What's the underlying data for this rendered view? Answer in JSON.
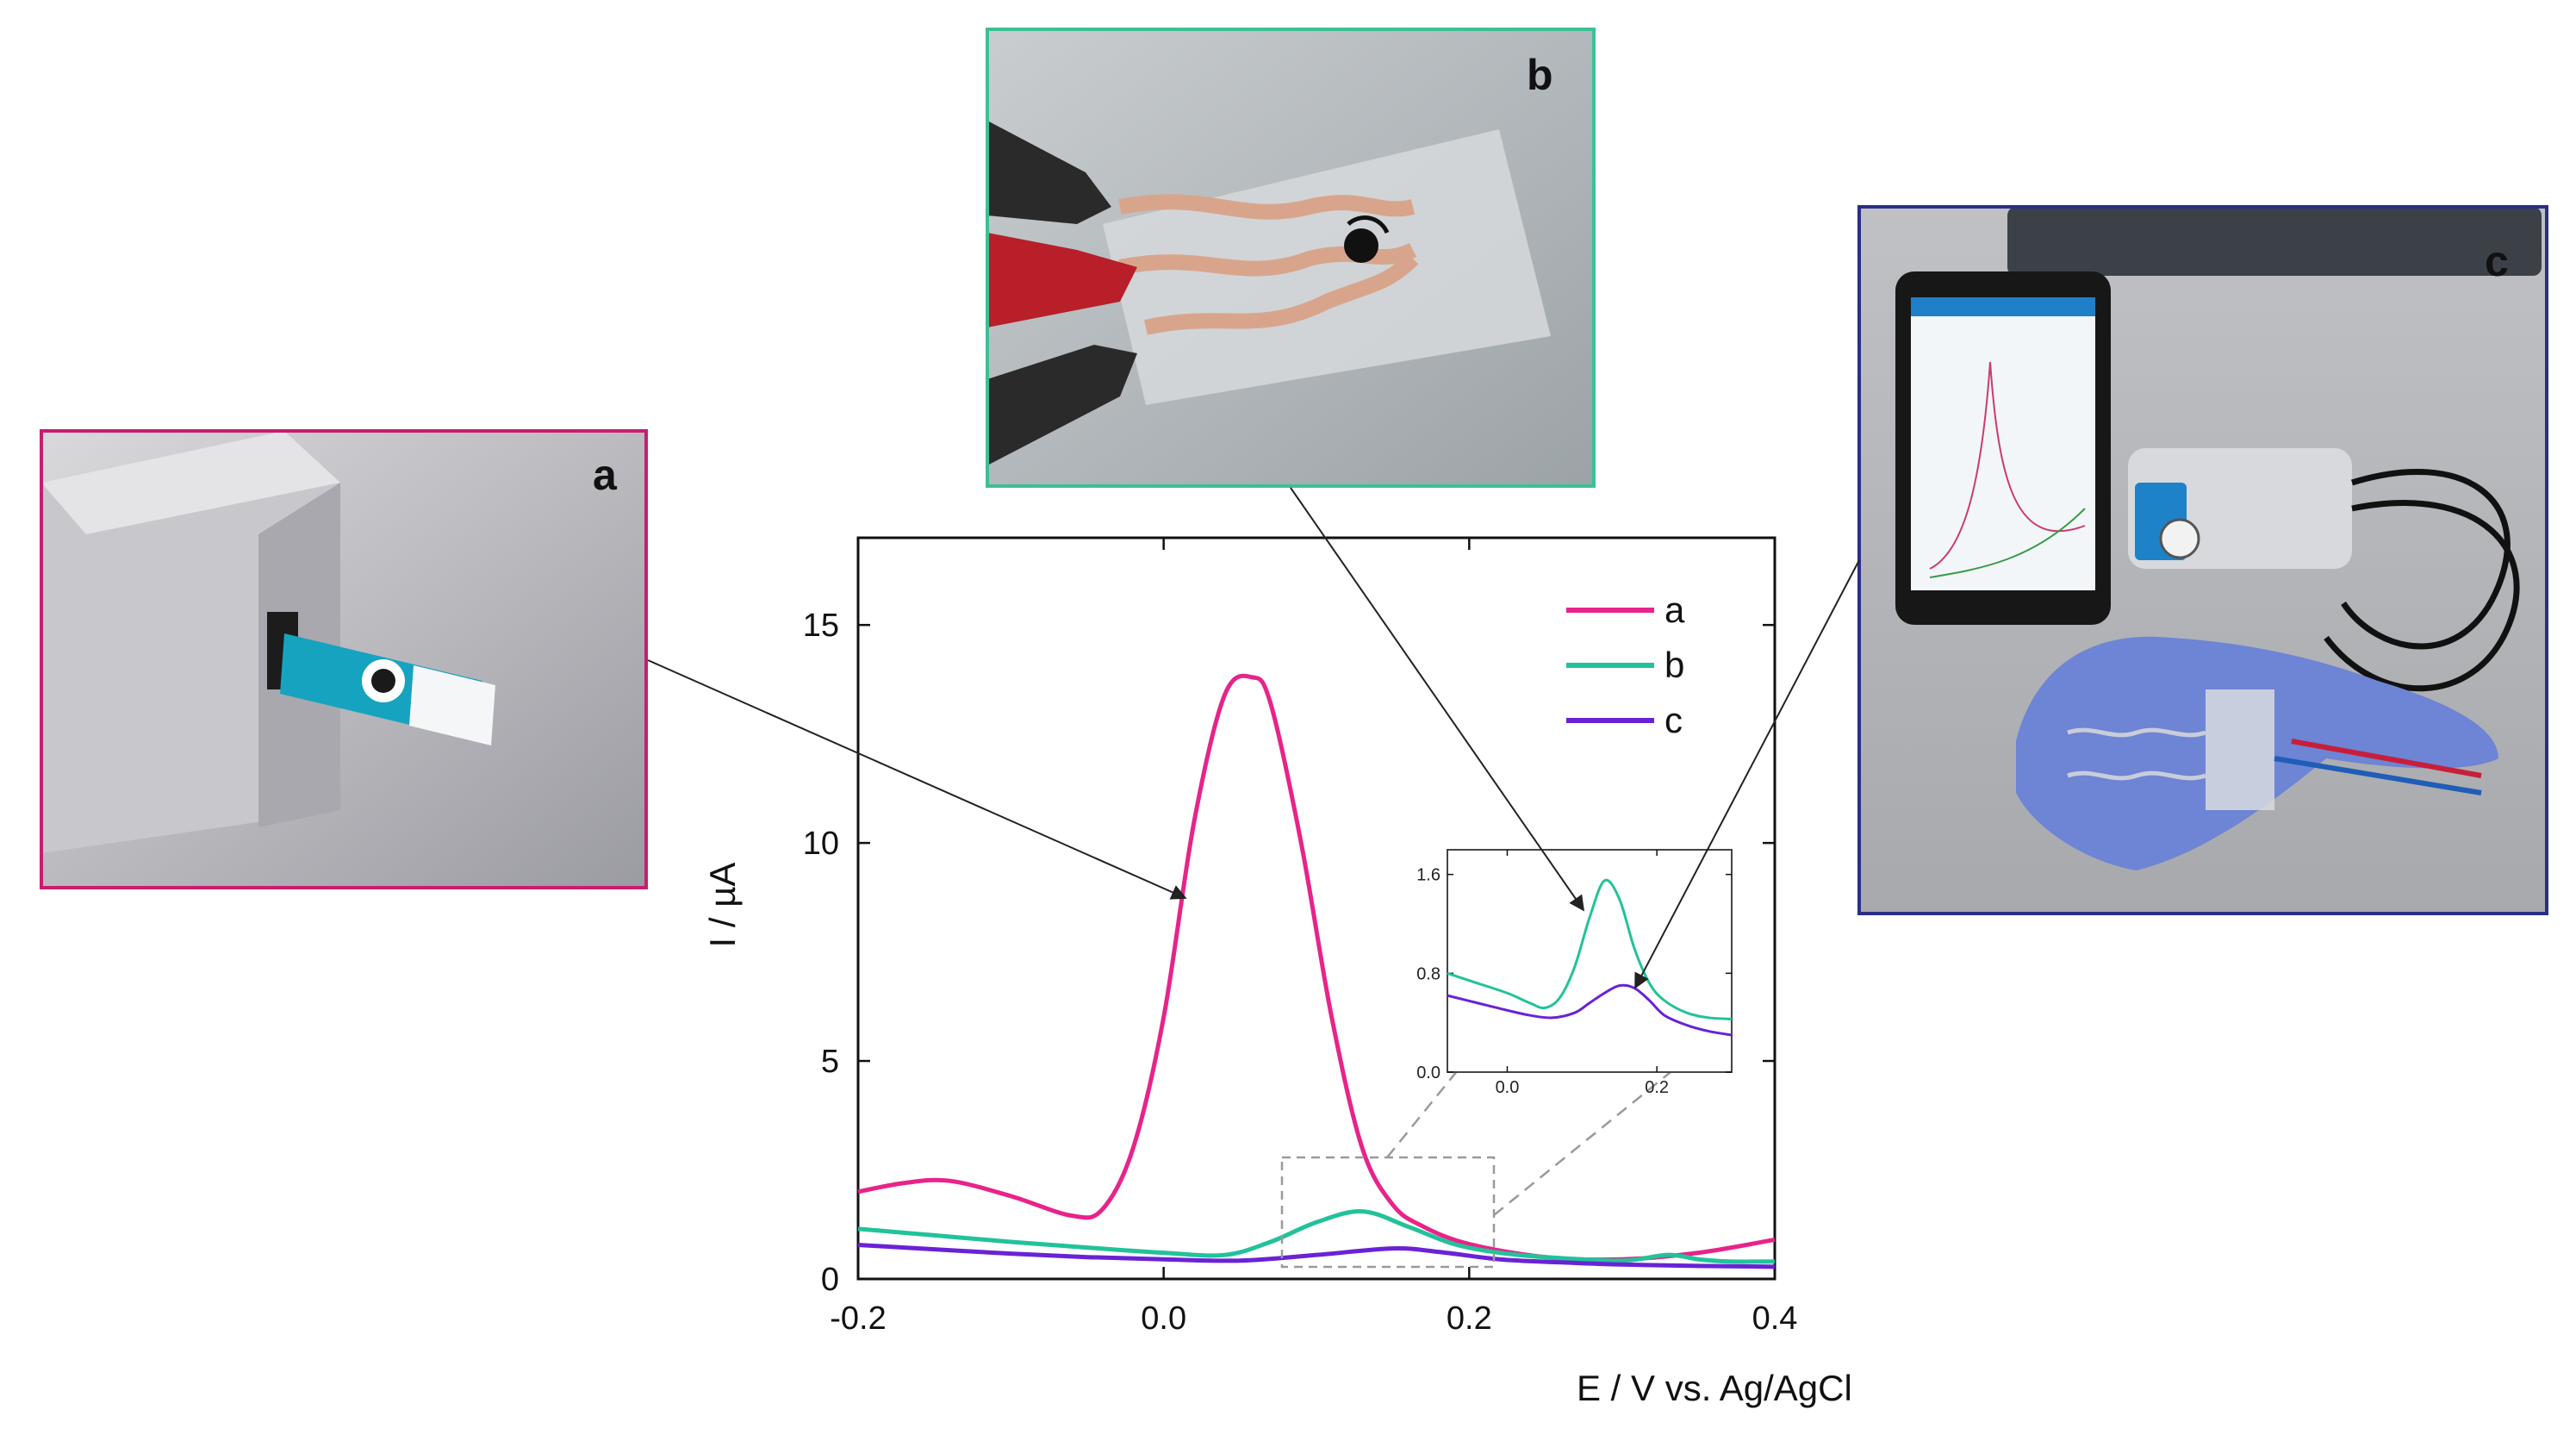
{
  "photos": {
    "a": {
      "letter": "a",
      "border_color": "#c81e6e",
      "description_icon": "potentiostat-photo"
    },
    "b": {
      "letter": "b",
      "border_color": "#3dbf95",
      "description_icon": "electrode-photo"
    },
    "c": {
      "letter": "c",
      "border_color": "#2a2f86",
      "description_icon": "glove-sensor-photo"
    }
  },
  "chart_data": [
    {
      "type": "line",
      "xlabel": "E / V vs. Ag/AgCl",
      "ylabel": "I / µA",
      "xlim": [
        -0.2,
        0.4
      ],
      "ylim": [
        0,
        17
      ],
      "xticks": [
        -0.2,
        0.0,
        0.2,
        0.4
      ],
      "xtick_labels": [
        "-0.2",
        "0.0",
        "0.2",
        "0.4"
      ],
      "yticks": [
        0,
        5,
        10,
        15
      ],
      "ytick_labels": [
        "0",
        "5",
        "10",
        "15"
      ],
      "legend_position": "top-right",
      "series": [
        {
          "name": "a",
          "color": "#e8238a",
          "x": [
            -0.2,
            -0.17,
            -0.14,
            -0.1,
            -0.06,
            -0.04,
            -0.02,
            0.0,
            0.02,
            0.04,
            0.058,
            0.07,
            0.09,
            0.11,
            0.13,
            0.15,
            0.17,
            0.2,
            0.25,
            0.3,
            0.35,
            0.4
          ],
          "y": [
            2.0,
            2.2,
            2.25,
            1.9,
            1.45,
            1.6,
            3.0,
            6.0,
            10.5,
            13.4,
            13.8,
            13.2,
            10.0,
            6.0,
            3.0,
            1.7,
            1.2,
            0.8,
            0.5,
            0.45,
            0.6,
            0.9
          ]
        },
        {
          "name": "b",
          "color": "#22c29a",
          "x": [
            -0.2,
            -0.15,
            -0.1,
            -0.05,
            0.0,
            0.04,
            0.07,
            0.1,
            0.13,
            0.16,
            0.19,
            0.22,
            0.25,
            0.3,
            0.33,
            0.35,
            0.37,
            0.4
          ],
          "y": [
            1.15,
            1.0,
            0.85,
            0.72,
            0.6,
            0.55,
            0.85,
            1.3,
            1.55,
            1.2,
            0.8,
            0.6,
            0.5,
            0.42,
            0.55,
            0.45,
            0.4,
            0.4
          ]
        },
        {
          "name": "c",
          "color": "#6a22d6",
          "x": [
            -0.2,
            -0.15,
            -0.1,
            -0.05,
            0.0,
            0.05,
            0.1,
            0.15,
            0.18,
            0.22,
            0.26,
            0.3,
            0.35,
            0.4
          ],
          "y": [
            0.78,
            0.68,
            0.58,
            0.5,
            0.45,
            0.42,
            0.55,
            0.7,
            0.62,
            0.45,
            0.38,
            0.33,
            0.3,
            0.28
          ]
        }
      ]
    },
    {
      "type": "line",
      "role": "inset",
      "xlim": [
        -0.08,
        0.3
      ],
      "ylim": [
        0.0,
        1.8
      ],
      "xticks": [
        0.0,
        0.2
      ],
      "xtick_labels": [
        "0.0",
        "0.2"
      ],
      "yticks": [
        0.0,
        0.8,
        1.6
      ],
      "ytick_labels": [
        "0.0",
        "0.8",
        "1.6"
      ],
      "series": [
        {
          "name": "b",
          "color": "#22c29a",
          "x": [
            -0.08,
            -0.04,
            0.0,
            0.03,
            0.05,
            0.07,
            0.09,
            0.11,
            0.13,
            0.15,
            0.17,
            0.19,
            0.21,
            0.24,
            0.27,
            0.3
          ],
          "y": [
            0.8,
            0.72,
            0.64,
            0.56,
            0.52,
            0.6,
            0.85,
            1.25,
            1.55,
            1.4,
            1.0,
            0.72,
            0.58,
            0.48,
            0.44,
            0.43
          ]
        },
        {
          "name": "c",
          "color": "#6a22d6",
          "x": [
            -0.08,
            -0.04,
            0.0,
            0.03,
            0.06,
            0.09,
            0.11,
            0.13,
            0.15,
            0.17,
            0.19,
            0.21,
            0.24,
            0.27,
            0.3
          ],
          "y": [
            0.62,
            0.56,
            0.5,
            0.46,
            0.44,
            0.48,
            0.56,
            0.64,
            0.7,
            0.68,
            0.58,
            0.46,
            0.38,
            0.33,
            0.3
          ]
        }
      ]
    }
  ]
}
